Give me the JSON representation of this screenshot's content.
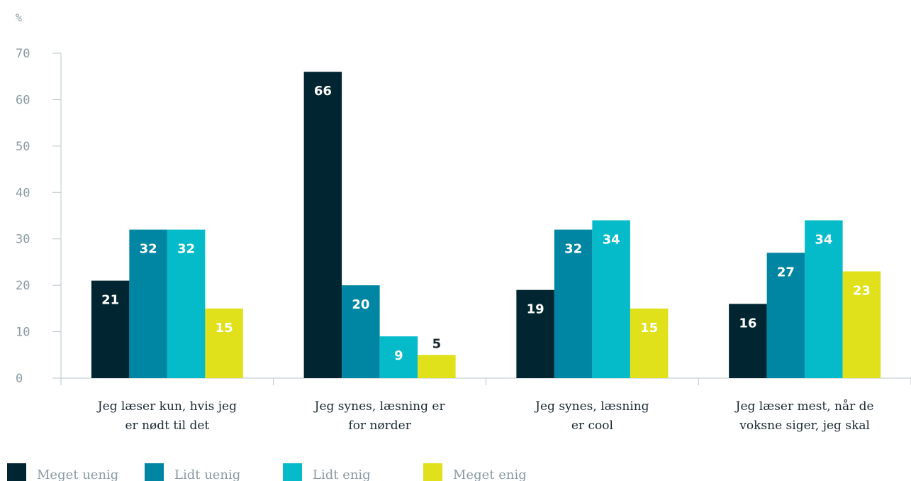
{
  "chart_data": {
    "type": "bar",
    "unit": "%",
    "ylim": [
      0,
      70
    ],
    "yticks": [
      "0",
      "10",
      "20",
      "30",
      "40",
      "50",
      "60",
      "70"
    ],
    "categories": [
      [
        "Jeg læser kun, hvis jeg",
        "er nødt til det"
      ],
      [
        "Jeg synes, læsning er",
        "for nørder"
      ],
      [
        "Jeg synes, læsning",
        "er cool"
      ],
      [
        "Jeg læser mest, når de",
        "voksne siger, jeg skal"
      ]
    ],
    "series": [
      {
        "name": "Meget uenig",
        "color": "#022631",
        "label_color": "#ffffff",
        "values": [
          21,
          66,
          19,
          16
        ]
      },
      {
        "name": "Lidt uenig",
        "color": "#0085a3",
        "label_color": "#ffffff",
        "values": [
          32,
          20,
          32,
          27
        ]
      },
      {
        "name": "Lidt enig",
        "color": "#05bac9",
        "label_color": "#ffffff",
        "values": [
          32,
          9,
          34,
          34
        ]
      },
      {
        "name": "Meget enig",
        "color": "#e0e01b",
        "label_color": "#ffffff",
        "values": [
          15,
          5,
          15,
          23
        ]
      }
    ],
    "grid": false,
    "legend_position": "bottom-left"
  }
}
